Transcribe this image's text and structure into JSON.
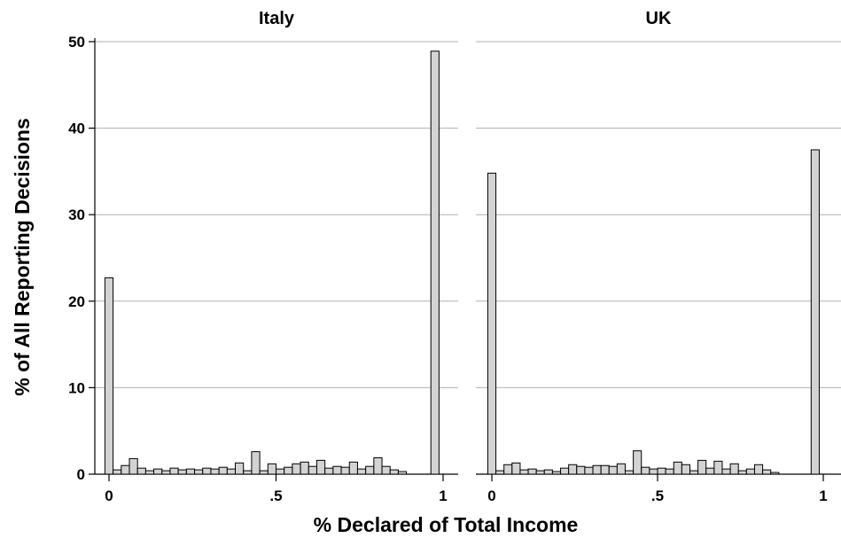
{
  "figure": {
    "ylabel": "% of All Reporting Decisions",
    "xlabel": "% Declared of Total Income"
  },
  "chart_data": [
    {
      "type": "bar",
      "title": "Italy",
      "xlabel": "% Declared of Total Income",
      "ylabel": "% of All Reporting Decisions",
      "xlim": [
        -0.01,
        1.03
      ],
      "ylim": [
        0,
        50
      ],
      "x_ticks": [
        0,
        0.5,
        1
      ],
      "x_tick_labels": [
        "0",
        ".5",
        "1"
      ],
      "y_ticks": [
        0,
        10,
        20,
        30,
        40,
        50
      ],
      "y_tick_labels": [
        "0",
        "10",
        "20",
        "30",
        "40",
        "50"
      ],
      "grid": "horizontal",
      "bar_color": "#d3d3d3",
      "edge_color": "#000000",
      "bin_width": 0.0244,
      "bins": [
        {
          "x": 0.0,
          "value": 22.7
        },
        {
          "x": 0.0244,
          "value": 0.5
        },
        {
          "x": 0.0488,
          "value": 1.0
        },
        {
          "x": 0.0732,
          "value": 1.8
        },
        {
          "x": 0.0976,
          "value": 0.7
        },
        {
          "x": 0.122,
          "value": 0.4
        },
        {
          "x": 0.1463,
          "value": 0.6
        },
        {
          "x": 0.1707,
          "value": 0.4
        },
        {
          "x": 0.1951,
          "value": 0.7
        },
        {
          "x": 0.2195,
          "value": 0.5
        },
        {
          "x": 0.2439,
          "value": 0.6
        },
        {
          "x": 0.2683,
          "value": 0.5
        },
        {
          "x": 0.2927,
          "value": 0.7
        },
        {
          "x": 0.3171,
          "value": 0.6
        },
        {
          "x": 0.3415,
          "value": 0.8
        },
        {
          "x": 0.3659,
          "value": 0.6
        },
        {
          "x": 0.3902,
          "value": 1.3
        },
        {
          "x": 0.4146,
          "value": 0.4
        },
        {
          "x": 0.439,
          "value": 2.6
        },
        {
          "x": 0.4634,
          "value": 0.4
        },
        {
          "x": 0.4878,
          "value": 1.2
        },
        {
          "x": 0.5122,
          "value": 0.6
        },
        {
          "x": 0.5366,
          "value": 0.8
        },
        {
          "x": 0.561,
          "value": 1.2
        },
        {
          "x": 0.5854,
          "value": 1.4
        },
        {
          "x": 0.6098,
          "value": 0.9
        },
        {
          "x": 0.6341,
          "value": 1.6
        },
        {
          "x": 0.6585,
          "value": 0.7
        },
        {
          "x": 0.6829,
          "value": 0.9
        },
        {
          "x": 0.7073,
          "value": 0.8
        },
        {
          "x": 0.7317,
          "value": 1.4
        },
        {
          "x": 0.7561,
          "value": 0.6
        },
        {
          "x": 0.7805,
          "value": 0.9
        },
        {
          "x": 0.8049,
          "value": 1.9
        },
        {
          "x": 0.8293,
          "value": 0.9
        },
        {
          "x": 0.8537,
          "value": 0.5
        },
        {
          "x": 0.878,
          "value": 0.3
        },
        {
          "x": 0.9756,
          "value": 48.9
        }
      ]
    },
    {
      "type": "bar",
      "title": "UK",
      "xlabel": "% Declared of Total Income",
      "ylabel": "% of All Reporting Decisions",
      "xlim": [
        -0.01,
        1.03
      ],
      "ylim": [
        0,
        50
      ],
      "x_ticks": [
        0,
        0.5,
        1
      ],
      "x_tick_labels": [
        "0",
        ".5",
        "1"
      ],
      "y_ticks": [
        0,
        10,
        20,
        30,
        40,
        50
      ],
      "y_tick_labels": [
        "0",
        "10",
        "20",
        "30",
        "40",
        "50"
      ],
      "grid": "horizontal",
      "bar_color": "#d3d3d3",
      "edge_color": "#000000",
      "bin_width": 0.0244,
      "bins": [
        {
          "x": 0.0,
          "value": 34.8
        },
        {
          "x": 0.0244,
          "value": 0.4
        },
        {
          "x": 0.0488,
          "value": 1.1
        },
        {
          "x": 0.0732,
          "value": 1.3
        },
        {
          "x": 0.0976,
          "value": 0.5
        },
        {
          "x": 0.122,
          "value": 0.6
        },
        {
          "x": 0.1463,
          "value": 0.4
        },
        {
          "x": 0.1707,
          "value": 0.5
        },
        {
          "x": 0.1951,
          "value": 0.3
        },
        {
          "x": 0.2195,
          "value": 0.7
        },
        {
          "x": 0.2439,
          "value": 1.1
        },
        {
          "x": 0.2683,
          "value": 0.9
        },
        {
          "x": 0.2927,
          "value": 0.8
        },
        {
          "x": 0.3171,
          "value": 1.0
        },
        {
          "x": 0.3415,
          "value": 1.0
        },
        {
          "x": 0.3659,
          "value": 0.9
        },
        {
          "x": 0.3902,
          "value": 1.2
        },
        {
          "x": 0.4146,
          "value": 0.4
        },
        {
          "x": 0.439,
          "value": 2.7
        },
        {
          "x": 0.4634,
          "value": 0.8
        },
        {
          "x": 0.4878,
          "value": 0.6
        },
        {
          "x": 0.5122,
          "value": 0.7
        },
        {
          "x": 0.5366,
          "value": 0.6
        },
        {
          "x": 0.561,
          "value": 1.4
        },
        {
          "x": 0.5854,
          "value": 1.1
        },
        {
          "x": 0.6098,
          "value": 0.4
        },
        {
          "x": 0.6341,
          "value": 1.6
        },
        {
          "x": 0.6585,
          "value": 0.7
        },
        {
          "x": 0.6829,
          "value": 1.5
        },
        {
          "x": 0.7073,
          "value": 0.6
        },
        {
          "x": 0.7317,
          "value": 1.2
        },
        {
          "x": 0.7561,
          "value": 0.4
        },
        {
          "x": 0.7805,
          "value": 0.6
        },
        {
          "x": 0.8049,
          "value": 1.1
        },
        {
          "x": 0.8293,
          "value": 0.5
        },
        {
          "x": 0.8537,
          "value": 0.2
        },
        {
          "x": 0.9756,
          "value": 37.5
        }
      ]
    }
  ]
}
